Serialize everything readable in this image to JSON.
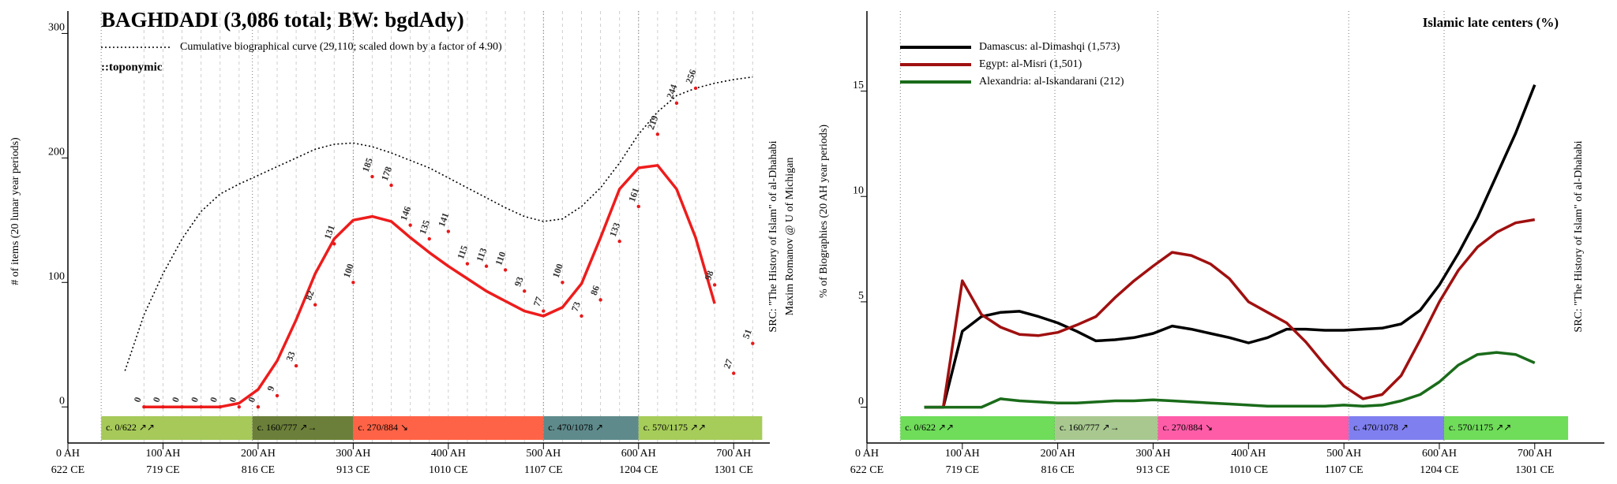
{
  "chart_data": [
    {
      "type": "line",
      "title": "BAGHDADI (3,086 total; BW: bgdAdy)",
      "subtitle": "::toponymic",
      "ylabel": "# of items (20 lunar year periods)",
      "notes": [
        "SRC: \"The History of Islam\" of al-Dhahabi",
        "Maxim Romanov @ U of Michigan"
      ],
      "xlim": [
        0,
        738
      ],
      "ylim": [
        -29,
        318
      ],
      "xticks": [
        {
          "value": 0,
          "label": [
            "0 AH",
            "622 CE"
          ]
        },
        {
          "value": 100,
          "label": [
            "100 AH",
            "719 CE"
          ]
        },
        {
          "value": 200,
          "label": [
            "200 AH",
            "816 CE"
          ]
        },
        {
          "value": 300,
          "label": [
            "300 AH",
            "913 CE"
          ]
        },
        {
          "value": 400,
          "label": [
            "400 AH",
            "1010 CE"
          ]
        },
        {
          "value": 500,
          "label": [
            "500 AH",
            "1107 CE"
          ]
        },
        {
          "value": 600,
          "label": [
            "600 AH",
            "1204 CE"
          ]
        },
        {
          "value": 700,
          "label": [
            "700 AH",
            "1301 CE"
          ]
        }
      ],
      "yticks": [
        0,
        100,
        200,
        300
      ],
      "grid": true,
      "legend": "upper left",
      "periods": [
        {
          "label": "c. 0/622 ↗↗",
          "start": 35,
          "end": 194,
          "color": "#a6c95a"
        },
        {
          "label": "c. 160/777 ↗→",
          "start": 194,
          "end": 300,
          "color": "#6b7f3a"
        },
        {
          "label": "c. 270/884 ↘",
          "start": 300,
          "end": 500,
          "color": "#ff6347"
        },
        {
          "label": "c. 470/1078 ↗",
          "start": 500,
          "end": 600,
          "color": "#5f8a8b"
        },
        {
          "label": "c. 570/1175 ↗↗",
          "start": 600,
          "end": 730,
          "color": "#a6cc5a"
        }
      ],
      "series": [
        {
          "name": "Cumulative biographical curve (29,110; scaled down by a factor of 4.90)",
          "style": "dotted",
          "color": "#000000",
          "x": [
            60,
            80,
            100,
            120,
            140,
            160,
            180,
            200,
            220,
            240,
            260,
            280,
            300,
            320,
            340,
            360,
            380,
            400,
            420,
            440,
            460,
            480,
            500,
            520,
            540,
            560,
            580,
            600,
            620,
            640,
            660,
            680,
            700,
            720
          ],
          "values": [
            29,
            74,
            107,
            135,
            157,
            171,
            179,
            186,
            193,
            200,
            207,
            211,
            212,
            209,
            204,
            198,
            192,
            184,
            176,
            168,
            160,
            153,
            149,
            151,
            161,
            176,
            196,
            219,
            237,
            250,
            256,
            260,
            263,
            265
          ]
        },
        {
          "style": "solid",
          "color": "#ee1c1c",
          "x": [
            80,
            100,
            120,
            140,
            160,
            180,
            200,
            220,
            240,
            260,
            280,
            300,
            320,
            340,
            360,
            380,
            400,
            420,
            440,
            460,
            480,
            500,
            520,
            540,
            560,
            580,
            600,
            620,
            640,
            660,
            680
          ],
          "values": [
            0,
            0,
            0,
            0,
            0,
            3,
            14,
            37,
            70,
            107,
            135,
            150,
            153,
            149,
            136,
            124,
            113,
            103,
            93,
            85,
            77,
            73,
            80,
            99,
            136,
            175,
            192,
            194,
            175,
            136,
            83
          ]
        },
        {
          "style": "points",
          "color": "#e8191a",
          "labeled": true,
          "x": [
            80,
            100,
            120,
            140,
            160,
            180,
            200,
            220,
            240,
            260,
            280,
            300,
            320,
            340,
            360,
            380,
            400,
            420,
            440,
            460,
            480,
            500,
            520,
            540,
            560,
            580,
            600,
            620,
            640,
            660,
            680,
            700,
            720
          ],
          "values": [
            0,
            0,
            0,
            0,
            0,
            0,
            0,
            9,
            33,
            82,
            131,
            100,
            185,
            178,
            146,
            135,
            141,
            115,
            113,
            110,
            93,
            77,
            100,
            73,
            86,
            133,
            161,
            219,
            244,
            256,
            98,
            27,
            51
          ]
        }
      ]
    },
    {
      "type": "line",
      "title": "Islamic late centers (%)",
      "ylabel": "% of Biographies (20 AH year periods)",
      "notes": [
        "SRC: \"The History of Islam\" of al-Dhahabi"
      ],
      "xlim": [
        0,
        773
      ],
      "ylim": [
        -1.7,
        18.8
      ],
      "xticks": [
        {
          "value": 0,
          "label": [
            "0 AH",
            "622 CE"
          ]
        },
        {
          "value": 100,
          "label": [
            "100 AH",
            "719 CE"
          ]
        },
        {
          "value": 200,
          "label": [
            "200 AH",
            "816 CE"
          ]
        },
        {
          "value": 300,
          "label": [
            "300 AH",
            "913 CE"
          ]
        },
        {
          "value": 400,
          "label": [
            "400 AH",
            "1010 CE"
          ]
        },
        {
          "value": 500,
          "label": [
            "500 AH",
            "1107 CE"
          ]
        },
        {
          "value": 600,
          "label": [
            "600 AH",
            "1204 CE"
          ]
        },
        {
          "value": 700,
          "label": [
            "700 AH",
            "1301 CE"
          ]
        }
      ],
      "yticks": [
        0,
        5,
        10,
        15
      ],
      "grid": false,
      "legend": "upper left",
      "periods": [
        {
          "label": "c. 0/622 ↗↗",
          "start": 35,
          "end": 197,
          "color": "#6fdc5a"
        },
        {
          "label": "c. 160/777 ↗→",
          "start": 197,
          "end": 305,
          "color": "#a8c890"
        },
        {
          "label": "c. 270/884 ↘",
          "start": 305,
          "end": 505,
          "color": "#ff5ca8"
        },
        {
          "label": "c. 470/1078 ↗",
          "start": 505,
          "end": 605,
          "color": "#7f7ff0"
        },
        {
          "label": "c. 570/1175 ↗↗",
          "start": 605,
          "end": 735,
          "color": "#6fdc5a"
        }
      ],
      "series": [
        {
          "name": "Damascus: al-Dimashqi (1,573)",
          "style": "solid",
          "color": "#000000",
          "x": [
            60,
            80,
            100,
            120,
            140,
            160,
            180,
            200,
            220,
            240,
            260,
            280,
            300,
            320,
            340,
            360,
            380,
            400,
            420,
            440,
            460,
            480,
            500,
            520,
            540,
            560,
            580,
            600,
            620,
            640,
            660,
            680,
            700
          ],
          "values": [
            0,
            0,
            3.6,
            4.3,
            4.5,
            4.55,
            4.3,
            4.0,
            3.6,
            3.15,
            3.2,
            3.3,
            3.5,
            3.85,
            3.7,
            3.5,
            3.3,
            3.05,
            3.3,
            3.7,
            3.7,
            3.65,
            3.65,
            3.7,
            3.75,
            3.95,
            4.6,
            5.8,
            7.3,
            9.0,
            11.0,
            13.0,
            15.3
          ]
        },
        {
          "name": "Egypt: al-Misri (1,501)",
          "style": "solid",
          "color": "#a01010",
          "x": [
            60,
            80,
            100,
            120,
            140,
            160,
            180,
            200,
            220,
            240,
            260,
            280,
            300,
            320,
            340,
            360,
            380,
            400,
            420,
            440,
            460,
            480,
            500,
            520,
            540,
            560,
            580,
            600,
            620,
            640,
            660,
            680,
            700
          ],
          "values": [
            0,
            0,
            6.0,
            4.4,
            3.8,
            3.45,
            3.4,
            3.55,
            3.9,
            4.3,
            5.2,
            6.0,
            6.7,
            7.35,
            7.2,
            6.8,
            6.1,
            5.0,
            4.5,
            4.0,
            3.1,
            2.0,
            1.0,
            0.4,
            0.6,
            1.5,
            3.2,
            5.0,
            6.5,
            7.6,
            8.3,
            8.75,
            8.9
          ]
        },
        {
          "name": "Alexandria: al-Iskandarani (212)",
          "style": "solid",
          "color": "#1a6b1a",
          "x": [
            60,
            80,
            100,
            120,
            140,
            160,
            180,
            200,
            220,
            240,
            260,
            280,
            300,
            320,
            340,
            360,
            380,
            400,
            420,
            440,
            460,
            480,
            500,
            520,
            540,
            560,
            580,
            600,
            620,
            640,
            660,
            680,
            700
          ],
          "values": [
            0,
            0,
            0,
            0,
            0.4,
            0.3,
            0.25,
            0.2,
            0.2,
            0.25,
            0.3,
            0.3,
            0.35,
            0.3,
            0.25,
            0.2,
            0.15,
            0.1,
            0.05,
            0.05,
            0.05,
            0.05,
            0.1,
            0.05,
            0.1,
            0.3,
            0.6,
            1.2,
            2.0,
            2.5,
            2.6,
            2.5,
            2.1
          ]
        }
      ]
    }
  ]
}
